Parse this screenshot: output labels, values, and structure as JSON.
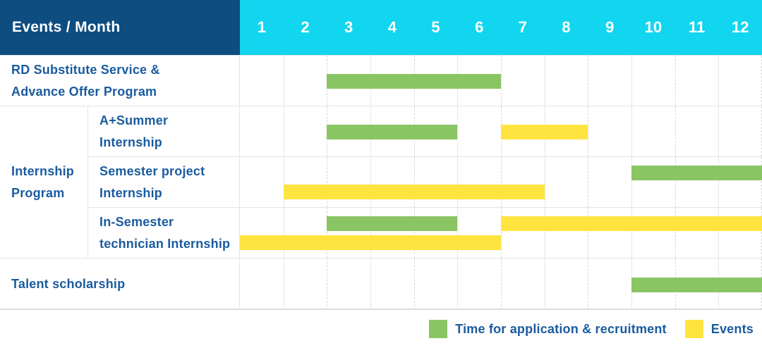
{
  "header": {
    "label": "Events / Month",
    "months": [
      "1",
      "2",
      "3",
      "4",
      "5",
      "6",
      "7",
      "8",
      "9",
      "10",
      "11",
      "12"
    ]
  },
  "labels": {
    "rd": "RD Substitute Service &\nAdvance Offer Program",
    "internship_group": "Internship\nProgram",
    "a_summer": "A+Summer\nInternship",
    "semester_project": "Semester project\nInternship",
    "in_semester": "In-Semester\ntechnician Internship",
    "talent": "Talent scholarship"
  },
  "legend": {
    "items": [
      {
        "key": "application_recruitment",
        "label": "Time for application & recruitment",
        "color": "#8ac564"
      },
      {
        "key": "events",
        "label": "Events",
        "color": "#ffe440"
      }
    ]
  },
  "colors": {
    "header_bg": "#0e4d80",
    "months_bg": "#12d6ef",
    "label_text": "#1a5b9e",
    "green": "#8ac564",
    "yellow": "#ffe440",
    "gridline": "#e0e0e0"
  },
  "chart_data": {
    "type": "bar",
    "subtype": "gantt",
    "title": "Events / Month",
    "x_axis": {
      "label": "Month",
      "ticks": [
        "1",
        "2",
        "3",
        "4",
        "5",
        "6",
        "7",
        "8",
        "9",
        "10",
        "11",
        "12"
      ],
      "range": [
        1,
        12
      ]
    },
    "series_legend": [
      {
        "key": "application_recruitment",
        "label": "Time for application & recruitment",
        "color": "#8ac564"
      },
      {
        "key": "events",
        "label": "Events",
        "color": "#ffe440"
      }
    ],
    "rows": [
      {
        "group": null,
        "label": "RD Substitute Service & Advance Offer Program",
        "bars": [
          {
            "series": "application_recruitment",
            "start_month": 3,
            "end_month": 6,
            "lane": "center"
          }
        ]
      },
      {
        "group": "Internship Program",
        "label": "A+Summer Internship",
        "bars": [
          {
            "series": "application_recruitment",
            "start_month": 3,
            "end_month": 5,
            "lane": "center"
          },
          {
            "series": "events",
            "start_month": 7,
            "end_month": 8,
            "lane": "center"
          }
        ]
      },
      {
        "group": "Internship Program",
        "label": "Semester project Internship",
        "bars": [
          {
            "series": "application_recruitment",
            "start_month": 10,
            "end_month": 12,
            "lane": "upper"
          },
          {
            "series": "events",
            "start_month": 2,
            "end_month": 7,
            "lane": "lower"
          }
        ]
      },
      {
        "group": "Internship Program",
        "label": "In-Semester technician Internship",
        "bars": [
          {
            "series": "application_recruitment",
            "start_month": 3,
            "end_month": 5,
            "lane": "upper"
          },
          {
            "series": "events",
            "start_month": 7,
            "end_month": 12,
            "lane": "upper"
          },
          {
            "series": "events",
            "start_month": 1,
            "end_month": 6,
            "lane": "lower"
          }
        ]
      },
      {
        "group": null,
        "label": "Talent scholarship",
        "bars": [
          {
            "series": "application_recruitment",
            "start_month": 10,
            "end_month": 12,
            "lane": "center"
          }
        ]
      }
    ]
  }
}
